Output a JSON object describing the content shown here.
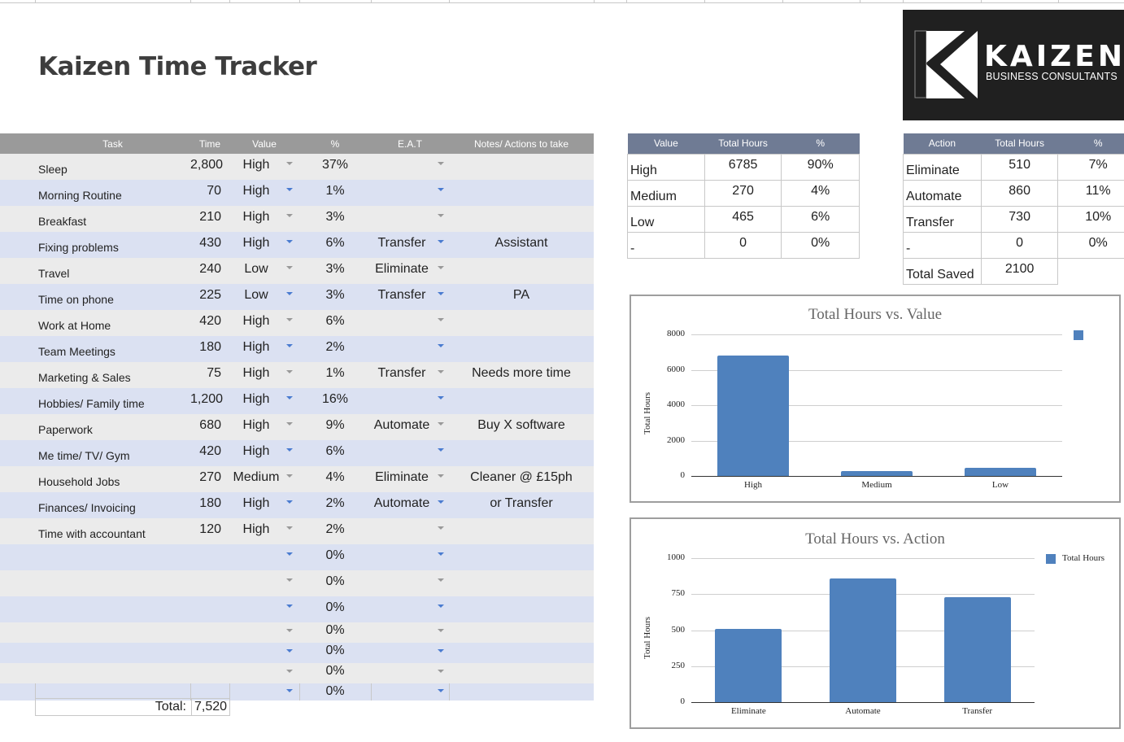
{
  "title": "Kaizen Time Tracker",
  "logo": {
    "wordmark": "KAIZEN",
    "tagline": "BUSINESS CONSULTANTS",
    "icon": "k-logo-icon"
  },
  "main_table": {
    "headers": [
      "Task",
      "Time",
      "Value",
      "%",
      "E.A.T",
      "Notes/ Actions to take"
    ],
    "rows": [
      {
        "task": "Sleep",
        "time": "2,800",
        "value": "High",
        "pct": "37%",
        "eat": "",
        "note": ""
      },
      {
        "task": "Morning Routine",
        "time": "70",
        "value": "High",
        "pct": "1%",
        "eat": "",
        "note": ""
      },
      {
        "task": "Breakfast",
        "time": "210",
        "value": "High",
        "pct": "3%",
        "eat": "",
        "note": ""
      },
      {
        "task": "Fixing problems",
        "time": "430",
        "value": "High",
        "pct": "6%",
        "eat": "Transfer",
        "note": "Assistant"
      },
      {
        "task": "Travel",
        "time": "240",
        "value": "Low",
        "pct": "3%",
        "eat": "Eliminate",
        "note": ""
      },
      {
        "task": "Time on phone",
        "time": "225",
        "value": "Low",
        "pct": "3%",
        "eat": "Transfer",
        "note": "PA"
      },
      {
        "task": "Work at Home",
        "time": "420",
        "value": "High",
        "pct": "6%",
        "eat": "",
        "note": ""
      },
      {
        "task": "Team Meetings",
        "time": "180",
        "value": "High",
        "pct": "2%",
        "eat": "",
        "note": ""
      },
      {
        "task": "Marketing & Sales",
        "time": "75",
        "value": "High",
        "pct": "1%",
        "eat": "Transfer",
        "note": "Needs more time"
      },
      {
        "task": "Hobbies/ Family time",
        "time": "1,200",
        "value": "High",
        "pct": "16%",
        "eat": "",
        "note": ""
      },
      {
        "task": "Paperwork",
        "time": "680",
        "value": "High",
        "pct": "9%",
        "eat": "Automate",
        "note": "Buy X software"
      },
      {
        "task": "Me time/ TV/ Gym",
        "time": "420",
        "value": "High",
        "pct": "6%",
        "eat": "",
        "note": ""
      },
      {
        "task": "Household Jobs",
        "time": "270",
        "value": "Medium",
        "pct": "4%",
        "eat": "Eliminate",
        "note": "Cleaner @ £15ph"
      },
      {
        "task": "Finances/ Invoicing",
        "time": "180",
        "value": "High",
        "pct": "2%",
        "eat": "Automate",
        "note": "or Transfer"
      },
      {
        "task": "Time with accountant",
        "time": "120",
        "value": "High",
        "pct": "2%",
        "eat": "",
        "note": ""
      },
      {
        "task": "",
        "time": "",
        "value": "",
        "pct": "0%",
        "eat": "",
        "note": ""
      },
      {
        "task": "",
        "time": "",
        "value": "",
        "pct": "0%",
        "eat": "",
        "note": ""
      },
      {
        "task": "",
        "time": "",
        "value": "",
        "pct": "0%",
        "eat": "",
        "note": ""
      },
      {
        "task": "",
        "time": "",
        "value": "",
        "pct": "0%",
        "eat": "",
        "note": ""
      },
      {
        "task": "",
        "time": "",
        "value": "",
        "pct": "0%",
        "eat": "",
        "note": ""
      },
      {
        "task": "",
        "time": "",
        "value": "",
        "pct": "0%",
        "eat": "",
        "note": ""
      },
      {
        "task": "",
        "time": "",
        "value": "",
        "pct": "0%",
        "eat": "",
        "note": ""
      }
    ],
    "total_label": "Total:",
    "total_value": "7,520"
  },
  "value_table": {
    "headers": [
      "Value",
      "Total Hours",
      "%"
    ],
    "rows": [
      {
        "label": "High",
        "hours": "6785",
        "pct": "90%"
      },
      {
        "label": "Medium",
        "hours": "270",
        "pct": "4%"
      },
      {
        "label": "Low",
        "hours": "465",
        "pct": "6%"
      },
      {
        "label": "-",
        "hours": "0",
        "pct": "0%"
      }
    ]
  },
  "action_table": {
    "headers": [
      "Action",
      "Total Hours",
      "%"
    ],
    "rows": [
      {
        "label": "Eliminate",
        "hours": "510",
        "pct": "7%"
      },
      {
        "label": "Automate",
        "hours": "860",
        "pct": "11%"
      },
      {
        "label": "Transfer",
        "hours": "730",
        "pct": "10%"
      },
      {
        "label": "-",
        "hours": "0",
        "pct": "0%"
      }
    ],
    "total_label": "Total Saved",
    "total_value": "2100"
  },
  "colors": {
    "bar": "#4f81bd",
    "header_main": "#9a9a9a",
    "header_summary": "#6f7b94",
    "row_odd": "#ebebeb",
    "row_even": "#dbe1f2",
    "dropdown_blue": "#4a7bd0"
  },
  "chart_data": [
    {
      "type": "bar",
      "title": "Total Hours vs. Value",
      "categories": [
        "High",
        "Medium",
        "Low"
      ],
      "values": [
        6785,
        270,
        465
      ],
      "xlabel": "",
      "ylabel": "Total Hours",
      "ylim": [
        0,
        8000
      ],
      "yticks": [
        "0",
        "2000",
        "4000",
        "6000",
        "8000"
      ],
      "grid": true,
      "legend": {
        "position": "right",
        "entries": [
          ""
        ]
      }
    },
    {
      "type": "bar",
      "title": "Total Hours vs. Action",
      "categories": [
        "Eliminate",
        "Automate",
        "Transfer"
      ],
      "values": [
        510,
        860,
        730
      ],
      "xlabel": "",
      "ylabel": "Total Hours",
      "ylim": [
        0,
        1000
      ],
      "yticks": [
        "0",
        "250",
        "500",
        "750",
        "1000"
      ],
      "grid": true,
      "legend": {
        "position": "right",
        "entries": [
          "Total Hours"
        ]
      }
    }
  ]
}
